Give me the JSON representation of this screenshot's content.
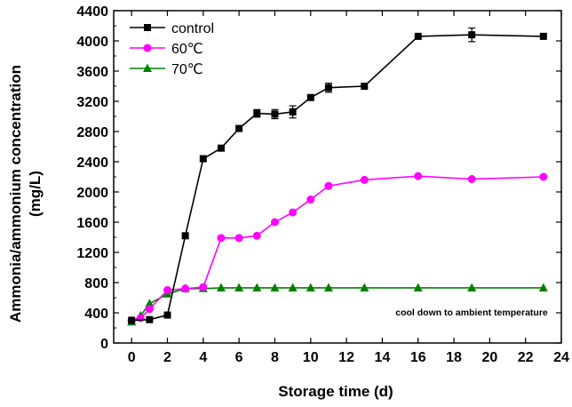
{
  "chart_data": {
    "type": "line",
    "title": "",
    "xlabel": "Storage time (d)",
    "ylabel_line1": "Ammonia/ammonium concentration",
    "ylabel_line2": "(mg/L)",
    "xlim": [
      -1,
      24
    ],
    "ylim": [
      0,
      4400
    ],
    "x_ticks": [
      0,
      2,
      4,
      6,
      8,
      10,
      12,
      14,
      16,
      18,
      20,
      22,
      24
    ],
    "y_ticks": [
      0,
      400,
      800,
      1200,
      1600,
      2000,
      2400,
      2800,
      3200,
      3600,
      4000,
      4400
    ],
    "grid": false,
    "legend_position": "top-left",
    "annotation": "cool down to ambient temperature",
    "series": [
      {
        "name": "control",
        "color": "#000000",
        "marker": "square",
        "x": [
          0,
          1,
          2,
          3,
          4,
          5,
          6,
          7,
          8,
          9,
          10,
          11,
          13,
          16,
          19,
          23
        ],
        "y": [
          300,
          310,
          370,
          1420,
          2440,
          2580,
          2840,
          3040,
          3030,
          3060,
          3250,
          3380,
          3400,
          4060,
          4080,
          4060
        ],
        "err": [
          0,
          0,
          0,
          0,
          0,
          0,
          0,
          50,
          60,
          80,
          0,
          60,
          0,
          0,
          90,
          0
        ]
      },
      {
        "name": "60℃",
        "color": "#ff00ff",
        "marker": "circle",
        "x": [
          0,
          0.5,
          1,
          2,
          3,
          4,
          5,
          6,
          7,
          8,
          9,
          10,
          11,
          13,
          16,
          19,
          23
        ],
        "y": [
          300,
          330,
          450,
          700,
          720,
          740,
          1390,
          1390,
          1420,
          1600,
          1730,
          1900,
          2080,
          2160,
          2210,
          2170,
          2200
        ],
        "err": []
      },
      {
        "name": "70℃",
        "color": "#008000",
        "marker": "triangle",
        "x": [
          0,
          0.5,
          1,
          2,
          3,
          4,
          5,
          6,
          7,
          8,
          9,
          10,
          11,
          13,
          16,
          19,
          23
        ],
        "y": [
          280,
          360,
          520,
          650,
          720,
          720,
          730,
          730,
          730,
          730,
          730,
          730,
          730,
          730,
          730,
          730,
          730
        ],
        "err": []
      }
    ]
  }
}
